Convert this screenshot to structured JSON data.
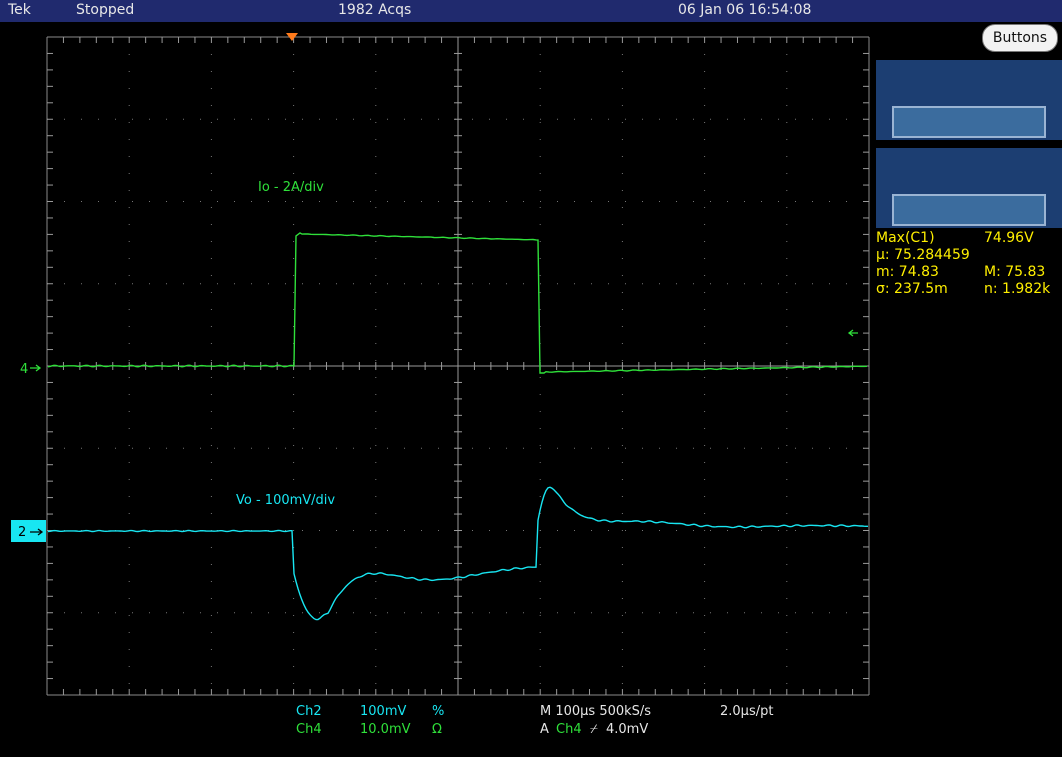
{
  "title_bar": {
    "brand": "Tek",
    "status": "Stopped",
    "acquisitions": "1982 Acqs",
    "timestamp": "06 Jan 06 16:54:08"
  },
  "buttons_label": "Buttons",
  "traces": [
    {
      "label": "Io - 2A/div",
      "color": "#2fe03a",
      "ref_marker": "4"
    },
    {
      "label": "Vo - 100mV/div",
      "color": "#18e6f2",
      "ref_marker": "2"
    }
  ],
  "measurements": {
    "name": "Max(C1)",
    "value": "74.96V",
    "mean": "μ: 75.284459",
    "min": "m: 74.83",
    "max": "M: 75.83",
    "sigma": "σ: 237.5m",
    "count": "n: 1.982k"
  },
  "channels": {
    "ch2_name": "Ch2",
    "ch2_scale": "100mV",
    "ch2_coupling": "%",
    "ch4_name": "Ch4",
    "ch4_scale": "10.0mV",
    "ch4_coupling": "Ω"
  },
  "timebase": {
    "horizontal": "M 100μs 500kS/s",
    "resolution": "2.0μs/pt",
    "trigger_mode": "A",
    "trigger_channel": "Ch4",
    "trigger_slope": "⌿",
    "trigger_level": "4.0mV"
  },
  "colors": {
    "title_bar": "#202a6e",
    "trace_io": "#2fe03a",
    "trace_vo": "#18e6f2",
    "measurement": "#ffef00",
    "trigger_marker": "#ff7a1a"
  }
}
